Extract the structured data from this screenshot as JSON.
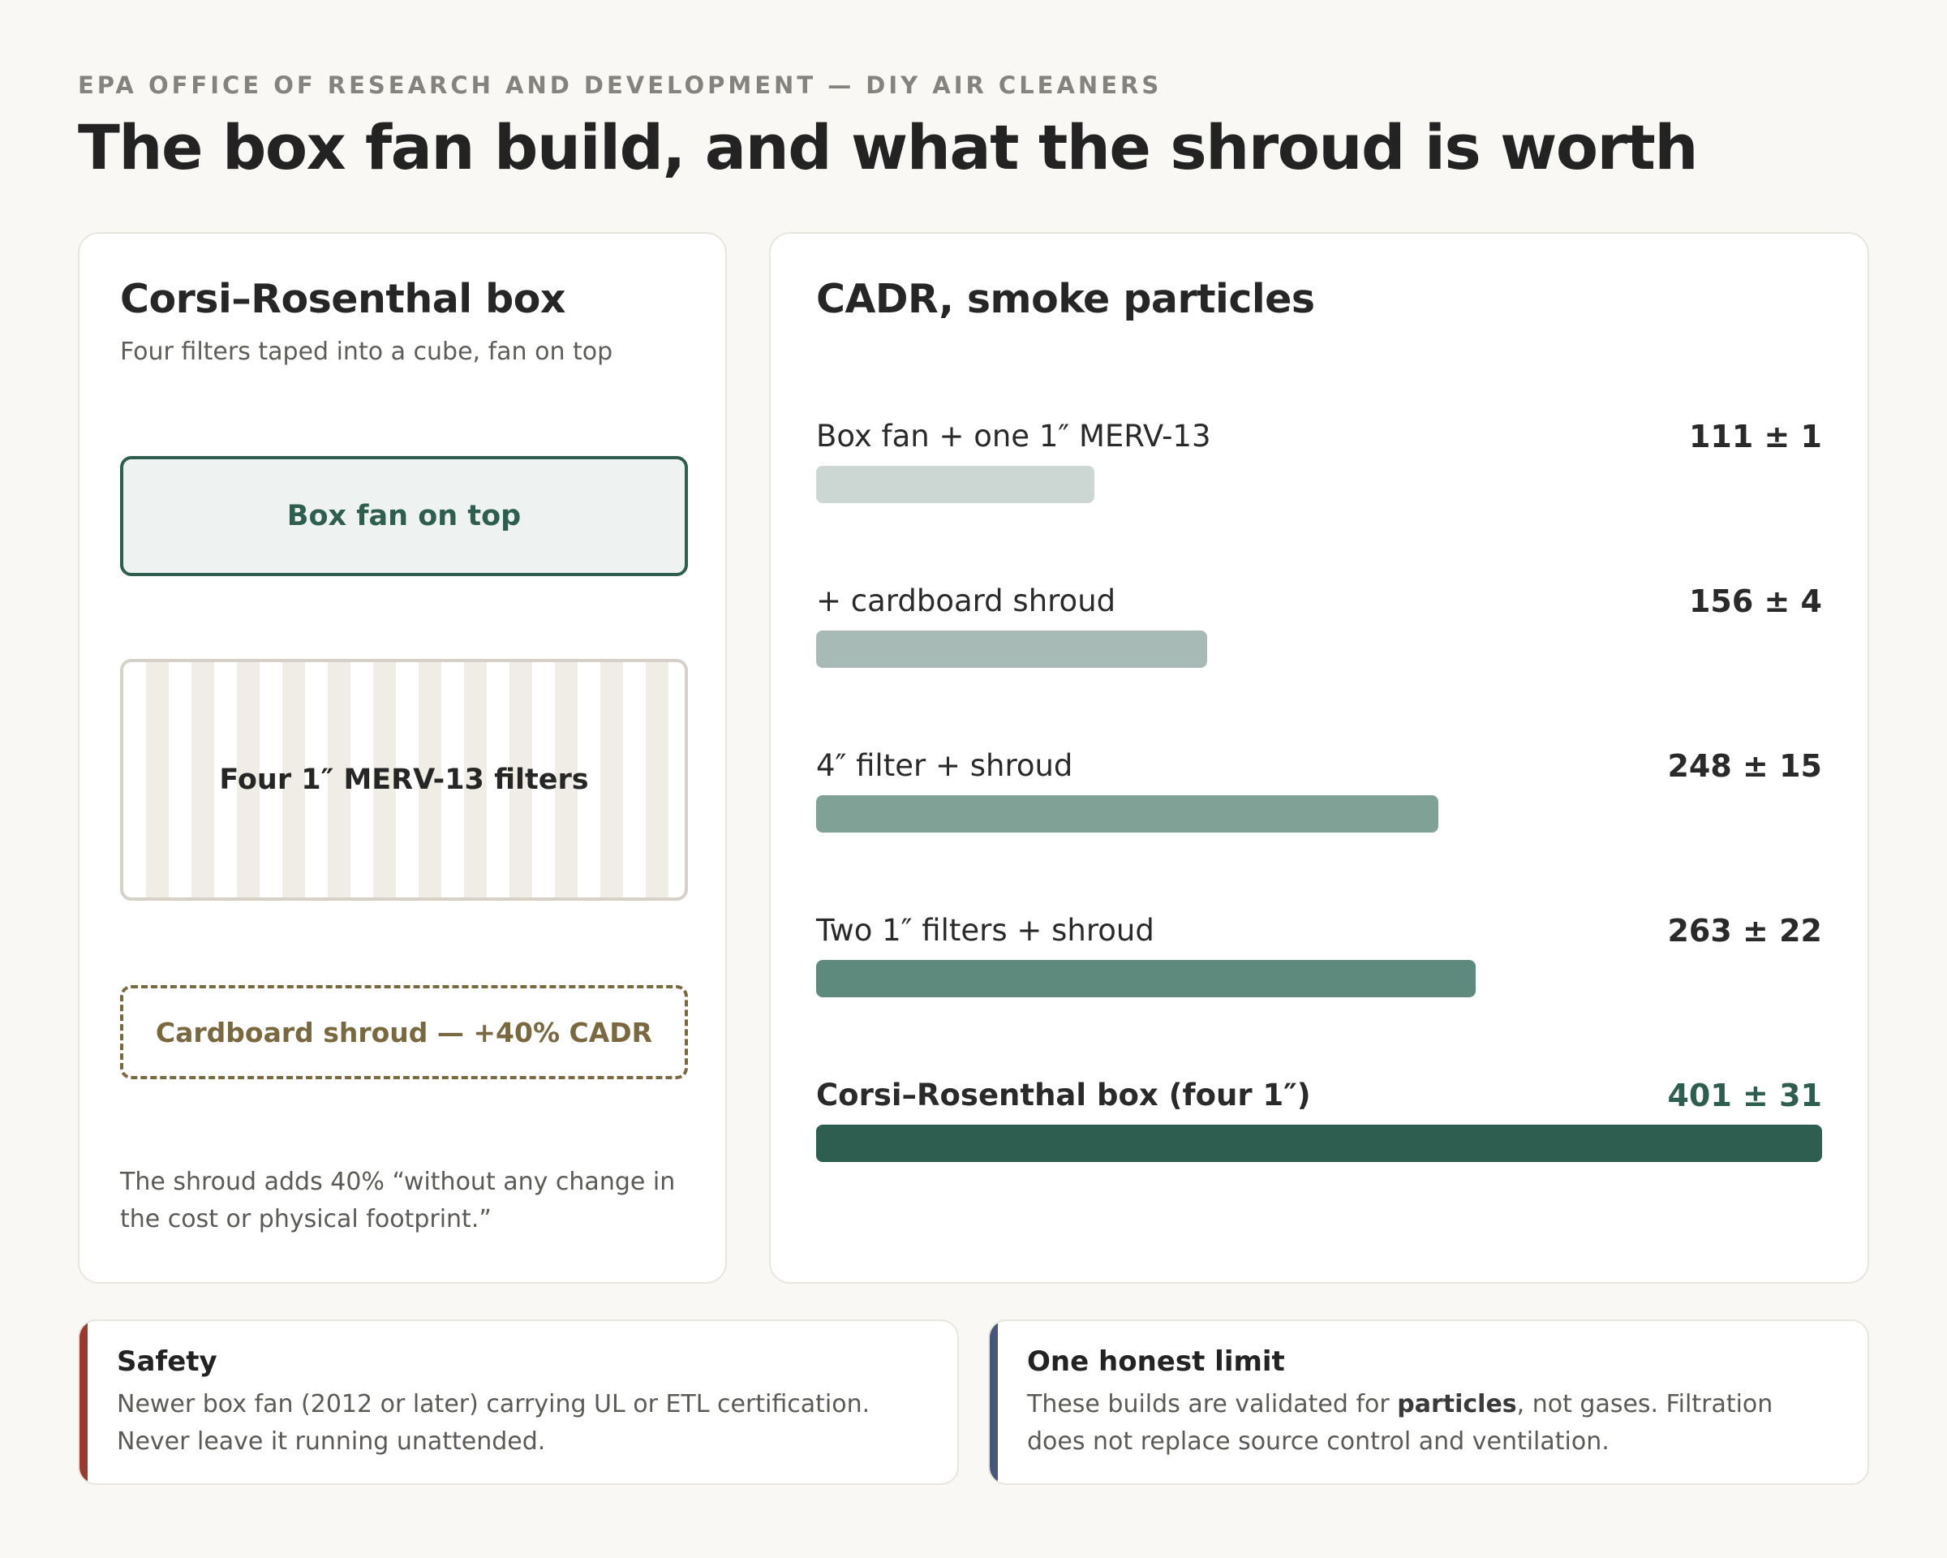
{
  "header": {
    "kicker": "EPA OFFICE OF RESEARCH AND DEVELOPMENT — DIY AIR CLEANERS",
    "title": "The box fan build, and what the shroud is worth"
  },
  "diagram_card": {
    "title": "Corsi–Rosenthal box",
    "subtitle": "Four filters taped into a cube, fan on top",
    "fan_label": "Box fan on top",
    "filters_label": "Four 1″ MERV-13 filters",
    "shroud_label": "Cardboard shroud — +40% CADR",
    "note": "The shroud adds 40% “without any change in the cost or physical footprint.”"
  },
  "chart_card": {
    "title": "CADR, smoke particles"
  },
  "chart_data": {
    "type": "bar",
    "title": "CADR, smoke particles",
    "orientation": "horizontal",
    "categories": [
      "Box fan + one 1″ MERV-13",
      "+ cardboard shroud",
      "4″ filter + shroud",
      "Two 1″ filters + shroud",
      "Corsi–Rosenthal box (four 1″)"
    ],
    "values": [
      111,
      156,
      248,
      263,
      401
    ],
    "errors": [
      1,
      4,
      15,
      22,
      31
    ],
    "value_labels": [
      "111 ± 1",
      "156 ± 4",
      "248 ± 15",
      "263 ± 22",
      "401 ± 31"
    ],
    "colors": [
      "#ccd6d3",
      "#a8bab5",
      "#7fa196",
      "#5e8a7d",
      "#2d5e50"
    ],
    "highlight_index": 4,
    "xlim": [
      0,
      401
    ]
  },
  "callouts": {
    "safety": {
      "title": "Safety",
      "body": "Newer box fan (2012 or later) carrying UL or ETL certification. Never leave it running unattended.",
      "accent": "#9a3a2c"
    },
    "limit": {
      "title": "One honest limit",
      "body_before": "These builds are validated for ",
      "body_bold": "particles",
      "body_after": ", not gases. Filtration does not replace source control and ventilation.",
      "accent": "#45577a"
    }
  }
}
